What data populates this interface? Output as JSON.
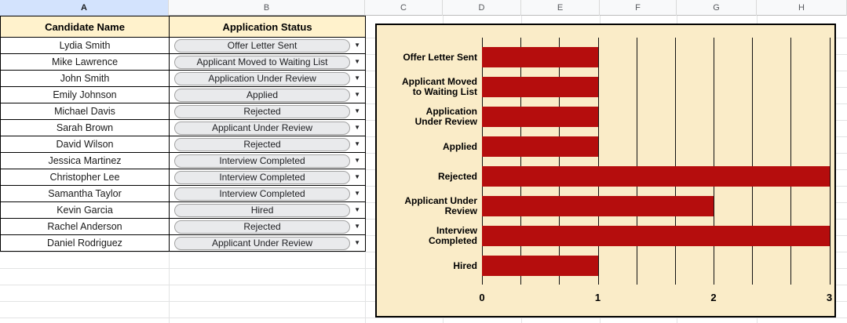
{
  "column_headers": [
    "A",
    "B",
    "C",
    "D",
    "E",
    "F",
    "G",
    "H"
  ],
  "table": {
    "headers": [
      "Candidate Name",
      "Application Status"
    ],
    "rows": [
      {
        "name": "Lydia Smith",
        "status": "Offer Letter Sent"
      },
      {
        "name": "Mike Lawrence",
        "status": "Applicant Moved to Waiting List"
      },
      {
        "name": "John Smith",
        "status": "Application Under Review"
      },
      {
        "name": "Emily Johnson",
        "status": "Applied"
      },
      {
        "name": "Michael Davis",
        "status": "Rejected"
      },
      {
        "name": "Sarah Brown",
        "status": "Applicant Under Review"
      },
      {
        "name": "David Wilson",
        "status": "Rejected"
      },
      {
        "name": "Jessica Martinez",
        "status": "Interview Completed"
      },
      {
        "name": "Christopher Lee",
        "status": "Interview Completed"
      },
      {
        "name": "Samantha Taylor",
        "status": "Interview Completed"
      },
      {
        "name": "Kevin Garcia",
        "status": "Hired"
      },
      {
        "name": "Rachel Anderson",
        "status": "Rejected"
      },
      {
        "name": "Daniel Rodriguez",
        "status": "Applicant Under Review"
      }
    ]
  },
  "icons": {
    "dropdown_arrow": "▼"
  },
  "chart_data": {
    "type": "bar",
    "orientation": "horizontal",
    "categories": [
      "Offer Letter Sent",
      "Applicant Moved to Waiting List",
      "Application Under Review",
      "Applied",
      "Rejected",
      "Applicant Under Review",
      "Interview Completed",
      "Hired"
    ],
    "values": [
      1,
      1,
      1,
      1,
      3,
      2,
      3,
      1
    ],
    "category_label_lines": [
      [
        "Offer Letter Sent"
      ],
      [
        "Applicant Moved",
        "to Waiting List"
      ],
      [
        "Application",
        "Under Review"
      ],
      [
        "Applied"
      ],
      [
        "Rejected"
      ],
      [
        "Applicant Under",
        "Review"
      ],
      [
        "Interview",
        "Completed"
      ],
      [
        "Hired"
      ]
    ],
    "x_ticks": [
      "0",
      "1",
      "2",
      "3"
    ],
    "xlim": [
      0,
      3
    ],
    "minor_gridline_step": 0.333,
    "grid": true,
    "legend": "none",
    "bar_color": "#b50d0d",
    "background_color": "#faecc8",
    "gridline_color": "#111111"
  },
  "colors": {
    "table_header_fill": "#fff2cc",
    "selected_column_header": "#d3e3fd",
    "chip_fill": "#e9eaec",
    "table_border": "#000000",
    "sheet_gridline": "#e2e3e4"
  }
}
